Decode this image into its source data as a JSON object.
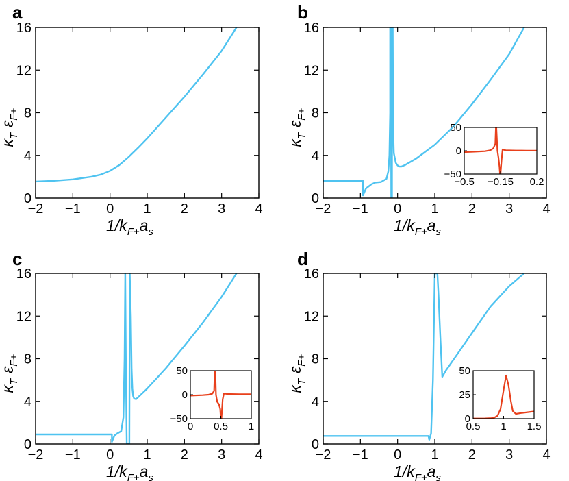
{
  "figure": {
    "xlabel_main": "1/k",
    "xlabel_sub": "F+",
    "xlabel_main2": "a",
    "xlabel_sub2": "s",
    "ylabel_kappa": "κ",
    "ylabel_kappa_sub": "T",
    "ylabel_eps": "ε",
    "ylabel_eps_sub": "F+"
  },
  "colors": {
    "main": "#4fc3f0",
    "inset": "#e8401c",
    "axis": "#000000"
  },
  "chart_data": [
    {
      "panel": "a",
      "type": "line",
      "xlim": [
        -2,
        4
      ],
      "ylim": [
        0,
        16
      ],
      "xticks": [
        -2,
        -1,
        0,
        1,
        2,
        3,
        4
      ],
      "yticks": [
        0,
        4,
        8,
        12,
        16
      ],
      "series": [
        {
          "name": "kappa_T eps_F+",
          "x": [
            -2,
            -1.5,
            -1,
            -0.5,
            -0.25,
            0,
            0.25,
            0.5,
            0.75,
            1,
            1.5,
            2,
            2.5,
            3,
            3.4
          ],
          "y": [
            1.55,
            1.62,
            1.75,
            2.0,
            2.2,
            2.55,
            3.1,
            3.85,
            4.7,
            5.6,
            7.55,
            9.5,
            11.6,
            13.8,
            16
          ]
        }
      ]
    },
    {
      "panel": "b",
      "type": "line",
      "xlim": [
        -2,
        4
      ],
      "ylim": [
        0,
        16
      ],
      "xticks": [
        -2,
        -1,
        0,
        1,
        2,
        3,
        4
      ],
      "yticks": [
        0,
        4,
        8,
        12,
        16
      ],
      "series": [
        {
          "name": "kappa_T eps_F+",
          "x": [
            -2,
            -0.93,
            -0.93,
            -0.85,
            -0.7,
            -0.6,
            -0.45,
            -0.3,
            -0.25,
            -0.22,
            -0.2,
            -0.2,
            -0.18,
            -0.17,
            -0.15,
            -0.15,
            -0.13,
            -0.12,
            -0.1,
            -0.05,
            0,
            0.05,
            0.1,
            0.2,
            0.5,
            1,
            1.5,
            2,
            2.5,
            3,
            3.4
          ],
          "y": [
            1.6,
            1.6,
            0.25,
            0.9,
            1.3,
            1.45,
            1.5,
            1.8,
            2.5,
            4,
            8,
            16,
            16,
            0.0,
            0.0,
            16,
            16,
            7,
            4.2,
            3.3,
            3.05,
            2.95,
            2.95,
            3.1,
            3.7,
            5.0,
            6.7,
            8.8,
            11.1,
            13.5,
            16
          ]
        }
      ],
      "inset": {
        "xlim": [
          -0.5,
          0.2
        ],
        "ylim": [
          -50,
          50
        ],
        "xticks": [
          -0.5,
          -0.15,
          0.2
        ],
        "yticks": [
          -50,
          0,
          50
        ],
        "x": [
          -0.5,
          -0.4,
          -0.3,
          -0.25,
          -0.22,
          -0.2,
          -0.195,
          -0.19,
          -0.18,
          -0.17,
          -0.16,
          -0.155,
          -0.15,
          -0.14,
          -0.13,
          -0.12,
          -0.1,
          0,
          0.1,
          0.2
        ],
        "y": [
          -3,
          -2,
          -1,
          1,
          5,
          15,
          50,
          50,
          0,
          -15,
          -35,
          -50,
          -50,
          -20,
          3,
          2,
          1,
          0.5,
          0.3,
          0.2
        ]
      }
    },
    {
      "panel": "c",
      "type": "line",
      "xlim": [
        -2,
        4
      ],
      "ylim": [
        0,
        16
      ],
      "xticks": [
        -2,
        -1,
        0,
        1,
        2,
        3,
        4
      ],
      "yticks": [
        0,
        4,
        8,
        12,
        16
      ],
      "series": [
        {
          "name": "kappa_T eps_F+",
          "x": [
            -2,
            0.05,
            0.05,
            0.12,
            0.2,
            0.3,
            0.36,
            0.39,
            0.41,
            0.41,
            0.43,
            0.45,
            0.47,
            0.5,
            0.52,
            0.53,
            0.53,
            0.56,
            0.58,
            0.6,
            0.62,
            0.65,
            0.7,
            1,
            1.5,
            2,
            2.5,
            3,
            3.4
          ],
          "y": [
            0.9,
            0.9,
            0.2,
            0.8,
            1.0,
            1.2,
            2.5,
            8,
            16,
            16,
            6,
            0.0,
            0.0,
            0.0,
            0.0,
            16,
            16,
            12,
            7,
            5.2,
            4.5,
            4.25,
            4.2,
            5.2,
            7.1,
            9.2,
            11.4,
            13.8,
            16
          ]
        }
      ],
      "inset": {
        "xlim": [
          0,
          1
        ],
        "ylim": [
          -50,
          50
        ],
        "xticks": [
          0,
          0.5,
          1
        ],
        "yticks": [
          -50,
          0,
          50
        ],
        "x": [
          0,
          0.2,
          0.3,
          0.36,
          0.39,
          0.4,
          0.41,
          0.42,
          0.44,
          0.47,
          0.49,
          0.5,
          0.51,
          0.53,
          0.55,
          0.58,
          0.6,
          0.8,
          1
        ],
        "y": [
          -2,
          -1,
          0,
          2,
          8,
          50,
          50,
          0,
          -15,
          -20,
          -30,
          -50,
          -50,
          -10,
          2,
          2,
          1.5,
          1,
          1
        ]
      }
    },
    {
      "panel": "d",
      "type": "line",
      "xlim": [
        -2,
        4
      ],
      "ylim": [
        0,
        16
      ],
      "xticks": [
        -2,
        -1,
        0,
        1,
        2,
        3,
        4
      ],
      "yticks": [
        0,
        4,
        8,
        12,
        16
      ],
      "series": [
        {
          "name": "kappa_T eps_F+",
          "x": [
            -2,
            0.83,
            0.85,
            0.9,
            0.95,
            1.0,
            1.01,
            1.04,
            1.07,
            1.07,
            1.1,
            1.15,
            1.2,
            1.25,
            1.3,
            1.5,
            2,
            2.5,
            3,
            3.4
          ],
          "y": [
            0.75,
            0.75,
            0.4,
            1.0,
            6,
            16,
            16,
            16,
            16,
            16,
            14,
            10,
            6.3,
            6.6,
            6.9,
            7.9,
            10.4,
            12.9,
            14.8,
            16
          ]
        }
      ],
      "inset": {
        "xlim": [
          0.5,
          1.5
        ],
        "ylim": [
          0,
          50
        ],
        "xticks": [
          0.5,
          1,
          1.5
        ],
        "yticks": [
          0,
          25,
          50
        ],
        "x": [
          0.5,
          0.7,
          0.8,
          0.85,
          0.9,
          0.95,
          1.0,
          1.04,
          1.08,
          1.12,
          1.15,
          1.2,
          1.25,
          1.3,
          1.5
        ],
        "y": [
          0.2,
          0.3,
          0.6,
          1.2,
          3,
          10,
          30,
          45,
          35,
          18,
          8,
          5,
          5.5,
          6,
          7.5
        ]
      }
    }
  ]
}
